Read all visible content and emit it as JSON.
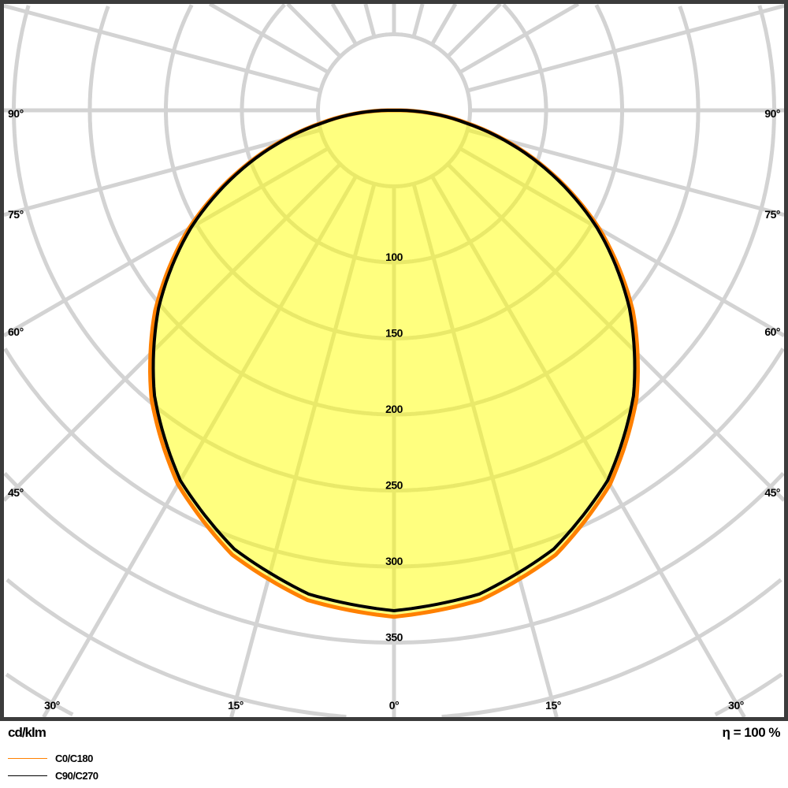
{
  "chart_data": {
    "type": "polar",
    "unit_label": "cd/klm",
    "efficiency_label": "η = 100 %",
    "radial_ticks": [
      100,
      150,
      200,
      250,
      300,
      350
    ],
    "radial_grid_step": 50,
    "angle_grid_step_deg": 15,
    "angle_labels_left": [
      "90°",
      "75°",
      "60°",
      "45°"
    ],
    "angle_labels_right": [
      "90°",
      "75°",
      "60°",
      "45°"
    ],
    "angle_labels_bottom": [
      "30°",
      "15°",
      "0°",
      "15°",
      "30°"
    ],
    "grid": true,
    "legend_placement": "bottom-left",
    "fill_color": "#ffff00",
    "series": [
      {
        "name": "C0/C180",
        "color": "#ff8000",
        "gamma_deg": [
          0,
          10,
          20,
          30,
          40,
          50,
          60,
          70,
          80,
          90
        ],
        "values": [
          333,
          327,
          311,
          284,
          248,
          205,
          156,
          102,
          49,
          4
        ]
      },
      {
        "name": "C90/C270",
        "color": "#000000",
        "gamma_deg": [
          0,
          10,
          20,
          30,
          40,
          50,
          60,
          70,
          80,
          90
        ],
        "values": [
          329,
          323,
          307,
          281,
          245,
          202,
          154,
          101,
          48,
          4
        ]
      }
    ]
  }
}
